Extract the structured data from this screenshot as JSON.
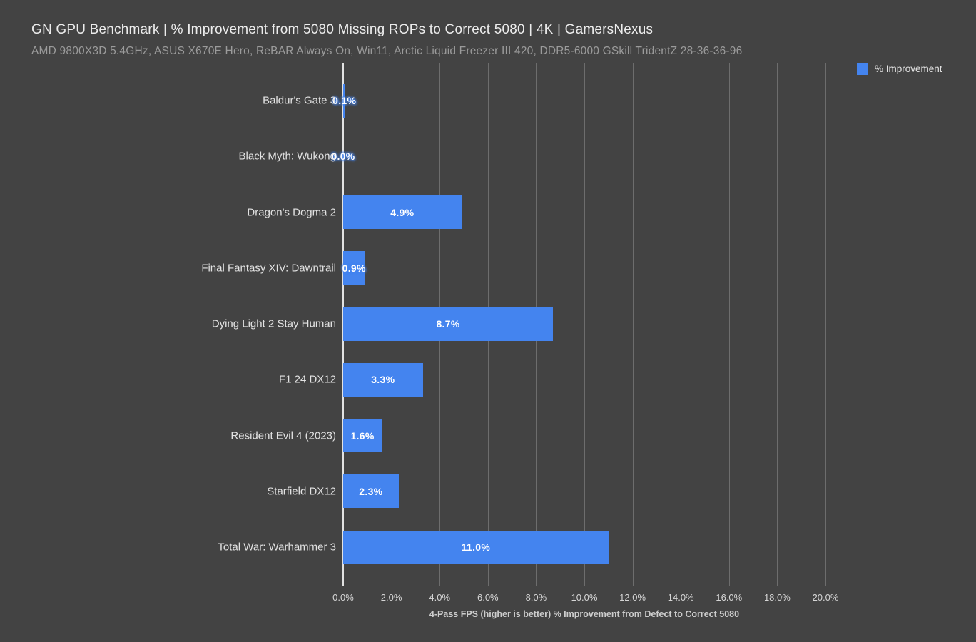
{
  "header": {
    "title": "GN GPU Benchmark | % Improvement from 5080 Missing ROPs to Correct 5080 | 4K | GamersNexus",
    "subtitle": "AMD 9800X3D 5.4GHz, ASUS X670E Hero, ReBAR Always On, Win11, Arctic Liquid Freezer III 420, DDR5-6000 GSkill TridentZ 28-36-36-96"
  },
  "legend": {
    "label": "% Improvement",
    "swatch_color": "#4484ef"
  },
  "colors": {
    "background": "#434343",
    "bar": "#4484ef",
    "gridline": "#6d6d6d",
    "zero_axis": "#e2e2e2",
    "title_text": "#ececec",
    "subtitle_text": "#9b9b9b",
    "category_text": "#e3e3e3",
    "value_text": "#ffffff"
  },
  "chart_data": {
    "type": "bar",
    "orientation": "horizontal",
    "title": "GN GPU Benchmark | % Improvement from 5080 Missing ROPs to Correct 5080 | 4K | GamersNexus",
    "subtitle": "AMD 9800X3D 5.4GHz, ASUS X670E Hero, ReBAR Always On, Win11, Arctic Liquid Freezer III 420, DDR5-6000 GSkill TridentZ 28-36-36-96",
    "series_name": "% Improvement",
    "categories": [
      "Baldur's Gate 3",
      "Black Myth: Wukong",
      "Dragon's Dogma 2",
      "Final Fantasy XIV: Dawntrail",
      "Dying Light 2 Stay Human",
      "F1 24 DX12",
      "Resident Evil 4 (2023)",
      "Starfield DX12",
      "Total War: Warhammer 3"
    ],
    "values": [
      0.1,
      0.0,
      4.9,
      0.9,
      8.7,
      3.3,
      1.6,
      2.3,
      11.0
    ],
    "value_labels": [
      "0.1%",
      "0.0%",
      "4.9%",
      "0.9%",
      "8.7%",
      "3.3%",
      "1.6%",
      "2.3%",
      "11.0%"
    ],
    "xlabel": "4-Pass FPS (higher is better) % Improvement from Defect to Correct 5080",
    "ylabel": "",
    "xlim": [
      0,
      20
    ],
    "x_ticks": [
      {
        "value": 0,
        "label": "0.0%"
      },
      {
        "value": 2,
        "label": "2.0%"
      },
      {
        "value": 4,
        "label": "4.0%"
      },
      {
        "value": 6,
        "label": "6.0%"
      },
      {
        "value": 8,
        "label": "8.0%"
      },
      {
        "value": 10,
        "label": "10.0%"
      },
      {
        "value": 12,
        "label": "12.0%"
      },
      {
        "value": 14,
        "label": "14.0%"
      },
      {
        "value": 16,
        "label": "16.0%"
      },
      {
        "value": 18,
        "label": "18.0%"
      },
      {
        "value": 20,
        "label": "20.0%"
      }
    ],
    "grid": "vertical",
    "legend_position": "top-right"
  }
}
